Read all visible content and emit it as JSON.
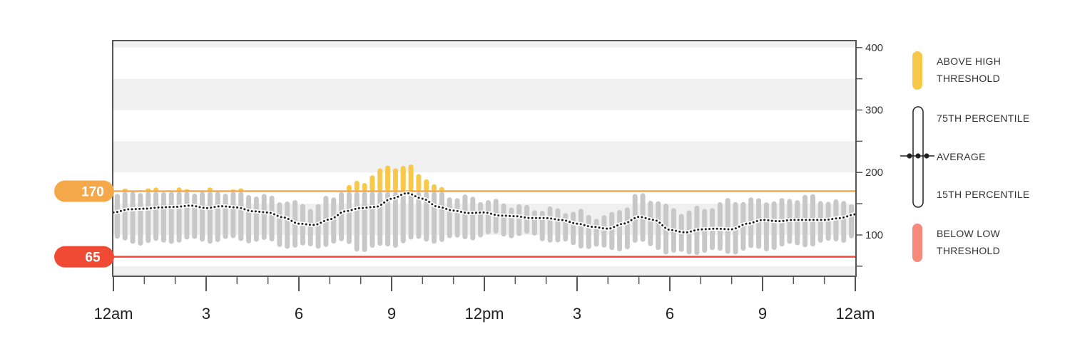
{
  "chart_data": {
    "type": "bar",
    "description_units": "glucose",
    "x_ticks": [
      "12am",
      "3",
      "6",
      "9",
      "12pm",
      "3",
      "6",
      "9",
      "12am"
    ],
    "y_ticks": [
      100,
      200,
      300,
      400
    ],
    "ylim": [
      35,
      410
    ],
    "hours_range": [
      0,
      24
    ],
    "thresholds": {
      "high": {
        "label": "170",
        "value": 170,
        "color": "#f5a84a"
      },
      "low": {
        "label": "65",
        "value": 65,
        "color": "#f04a35"
      }
    },
    "colors": {
      "above_high": "#f7c84a",
      "percentile_bar": "#c8c8c8",
      "below_low": "#f4897c",
      "average_line": "#222222",
      "band_gray": "#f0f0f0"
    },
    "series": [
      {
        "name": "AVERAGE",
        "points": [
          [
            0.0,
            136
          ],
          [
            0.5,
            141
          ],
          [
            1.0,
            142
          ],
          [
            1.5,
            144
          ],
          [
            2.0,
            145
          ],
          [
            2.5,
            147
          ],
          [
            3.0,
            143
          ],
          [
            3.5,
            146
          ],
          [
            4.0,
            144
          ],
          [
            4.5,
            138
          ],
          [
            5.0,
            136
          ],
          [
            5.5,
            128
          ],
          [
            6.0,
            118
          ],
          [
            6.5,
            116
          ],
          [
            7.0,
            125
          ],
          [
            7.5,
            138
          ],
          [
            8.0,
            143
          ],
          [
            8.5,
            145
          ],
          [
            9.0,
            158
          ],
          [
            9.5,
            167
          ],
          [
            10.0,
            158
          ],
          [
            10.5,
            145
          ],
          [
            11.0,
            139
          ],
          [
            11.5,
            135
          ],
          [
            12.0,
            136
          ],
          [
            12.5,
            131
          ],
          [
            13.0,
            130
          ],
          [
            13.5,
            127
          ],
          [
            14.0,
            127
          ],
          [
            14.5,
            124
          ],
          [
            15.0,
            118
          ],
          [
            15.5,
            113
          ],
          [
            16.0,
            110
          ],
          [
            16.5,
            118
          ],
          [
            17.0,
            129
          ],
          [
            17.5,
            124
          ],
          [
            18.0,
            108
          ],
          [
            18.5,
            104
          ],
          [
            19.0,
            109
          ],
          [
            19.5,
            110
          ],
          [
            20.0,
            109
          ],
          [
            20.5,
            118
          ],
          [
            21.0,
            124
          ],
          [
            21.5,
            122
          ],
          [
            22.0,
            124
          ],
          [
            22.5,
            124
          ],
          [
            23.0,
            124
          ],
          [
            23.5,
            127
          ],
          [
            24.0,
            133
          ]
        ]
      },
      {
        "name": "75TH PERCENTILE",
        "points": [
          [
            0.0,
            165
          ],
          [
            0.5,
            170
          ],
          [
            1.0,
            172
          ],
          [
            1.5,
            172
          ],
          [
            2.0,
            172
          ],
          [
            2.5,
            171
          ],
          [
            3.0,
            171
          ],
          [
            3.5,
            171
          ],
          [
            4.0,
            171
          ],
          [
            4.5,
            166
          ],
          [
            5.0,
            161
          ],
          [
            5.5,
            156
          ],
          [
            6.0,
            150
          ],
          [
            6.5,
            146
          ],
          [
            7.0,
            160
          ],
          [
            7.5,
            175
          ],
          [
            8.0,
            185
          ],
          [
            8.5,
            200
          ],
          [
            9.0,
            212
          ],
          [
            9.5,
            210
          ],
          [
            10.0,
            197
          ],
          [
            10.5,
            175
          ],
          [
            11.0,
            162
          ],
          [
            11.5,
            160
          ],
          [
            12.0,
            157
          ],
          [
            12.5,
            152
          ],
          [
            13.0,
            148
          ],
          [
            13.5,
            143
          ],
          [
            14.0,
            142
          ],
          [
            14.5,
            140
          ],
          [
            15.0,
            138
          ],
          [
            15.5,
            131
          ],
          [
            16.0,
            130
          ],
          [
            16.5,
            145
          ],
          [
            17.0,
            165
          ],
          [
            17.5,
            158
          ],
          [
            18.0,
            143
          ],
          [
            18.5,
            138
          ],
          [
            19.0,
            143
          ],
          [
            19.5,
            148
          ],
          [
            20.0,
            157
          ],
          [
            20.5,
            155
          ],
          [
            21.0,
            158
          ],
          [
            21.5,
            153
          ],
          [
            22.0,
            160
          ],
          [
            22.5,
            162
          ],
          [
            23.0,
            157
          ],
          [
            23.5,
            152
          ],
          [
            24.0,
            154
          ]
        ]
      },
      {
        "name": "15TH PERCENTILE",
        "points": [
          [
            0.0,
            90
          ],
          [
            0.5,
            90
          ],
          [
            1.0,
            85
          ],
          [
            1.5,
            87
          ],
          [
            2.0,
            90
          ],
          [
            2.5,
            90
          ],
          [
            3.0,
            90
          ],
          [
            3.5,
            90
          ],
          [
            4.0,
            92
          ],
          [
            4.5,
            90
          ],
          [
            5.0,
            88
          ],
          [
            5.5,
            82
          ],
          [
            6.0,
            79
          ],
          [
            6.5,
            80
          ],
          [
            7.0,
            85
          ],
          [
            7.5,
            86
          ],
          [
            8.0,
            75
          ],
          [
            8.5,
            78
          ],
          [
            9.0,
            82
          ],
          [
            9.5,
            90
          ],
          [
            10.0,
            90
          ],
          [
            10.5,
            90
          ],
          [
            11.0,
            92
          ],
          [
            11.5,
            95
          ],
          [
            12.0,
            97
          ],
          [
            12.5,
            100
          ],
          [
            13.0,
            98
          ],
          [
            13.5,
            98
          ],
          [
            14.0,
            92
          ],
          [
            14.5,
            86
          ],
          [
            15.0,
            82
          ],
          [
            15.5,
            80
          ],
          [
            16.0,
            75
          ],
          [
            16.5,
            78
          ],
          [
            17.0,
            86
          ],
          [
            17.5,
            82
          ],
          [
            18.0,
            68
          ],
          [
            18.5,
            70
          ],
          [
            19.0,
            72
          ],
          [
            19.5,
            72
          ],
          [
            20.0,
            72
          ],
          [
            20.5,
            75
          ],
          [
            21.0,
            76
          ],
          [
            21.5,
            80
          ],
          [
            22.0,
            82
          ],
          [
            22.5,
            84
          ],
          [
            23.0,
            86
          ],
          [
            23.5,
            90
          ],
          [
            24.0,
            98
          ]
        ]
      }
    ],
    "legend": [
      {
        "key": "above",
        "lines": [
          "ABOVE HIGH",
          "THRESHOLD"
        ]
      },
      {
        "key": "p75",
        "lines": [
          "75TH PERCENTILE"
        ]
      },
      {
        "key": "avg",
        "lines": [
          "AVERAGE"
        ]
      },
      {
        "key": "p15",
        "lines": [
          "15TH PERCENTILE"
        ]
      },
      {
        "key": "below",
        "lines": [
          "BELOW LOW",
          "THRESHOLD"
        ]
      }
    ]
  }
}
